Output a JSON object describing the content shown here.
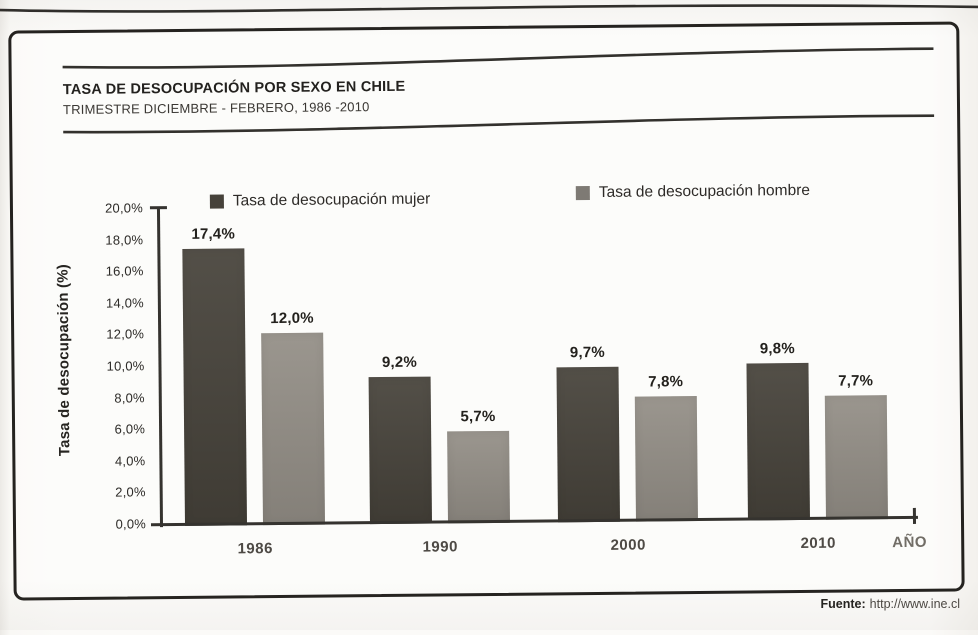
{
  "page": {
    "header": {
      "title": "TASA DE DESOCUPACIÓN POR SEXO EN CHILE",
      "subtitle": "TRIMESTRE DICIEMBRE - FEBRERO, 1986 -2010"
    },
    "footer": {
      "label": "Fuente:",
      "url": "http://www.ine.cl"
    }
  },
  "chart_data": {
    "type": "bar",
    "title": "TASA DE DESOCUPACIÓN POR SEXO EN CHILE",
    "subtitle": "TRIMESTRE DICIEMBRE - FEBRERO, 1986 -2010",
    "categories": [
      "1986",
      "1990",
      "2000",
      "2010"
    ],
    "series": [
      {
        "name": "Tasa de desocupación mujer",
        "color": "#46423a",
        "values": [
          17.4,
          9.2,
          9.7,
          9.8
        ],
        "labels": [
          "17,4%",
          "9,2%",
          "9,7%",
          "9,8%"
        ]
      },
      {
        "name": "Tasa de desocupación hombre",
        "color": "#938e86",
        "values": [
          12.0,
          5.7,
          7.8,
          7.7
        ],
        "labels": [
          "12,0%",
          "5,7%",
          "7,8%",
          "7,7%"
        ]
      }
    ],
    "xlabel": "AÑO",
    "ylabel": "Tasa de desocupación (%)",
    "ylim": [
      0,
      20
    ],
    "ytick_step": 2,
    "ytick_labels": [
      "0,0%",
      "2,0%",
      "4,0%",
      "6,0%",
      "8,0%",
      "10,0%",
      "12,0%",
      "14,0%",
      "16,0%",
      "18,0%",
      "20,0%"
    ],
    "legend_position": "top",
    "grid": false,
    "source": "Fuente: http://www.ine.cl"
  }
}
